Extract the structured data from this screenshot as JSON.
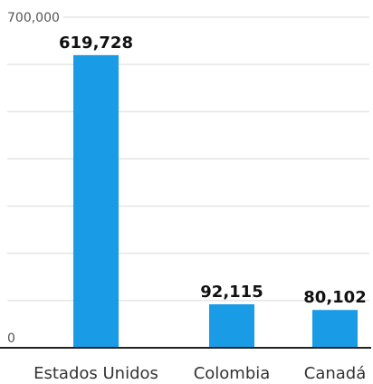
{
  "chart_data": {
    "type": "bar",
    "title": "",
    "xlabel": "",
    "ylabel": "",
    "categories": [
      "Estados Unidos",
      "Colombia",
      "Canadá"
    ],
    "values": [
      619728,
      92115,
      80102
    ],
    "value_labels": [
      "619,728",
      "92,115",
      "80,102"
    ],
    "ylim": [
      0,
      700000
    ],
    "yticks": [
      0,
      700000
    ],
    "ytick_labels": [
      "0",
      "700,000"
    ],
    "grid": true,
    "legend": "none",
    "bar_color": "#1a9be6",
    "grid_color": "#d9d9d9",
    "axis_color": "#222222"
  }
}
